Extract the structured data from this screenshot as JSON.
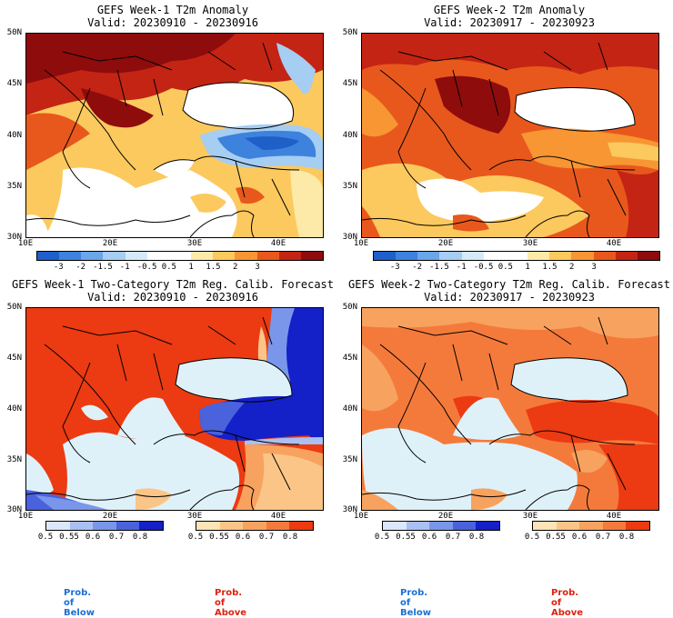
{
  "panels": [
    {
      "title": "GEFS Week-1 T2m Anomaly",
      "valid": "Valid: 20230910 - 20230916",
      "kind": "anomaly",
      "scene": "w1a"
    },
    {
      "title": "GEFS Week-2 T2m Anomaly",
      "valid": "Valid: 20230917 - 20230923",
      "kind": "anomaly",
      "scene": "w2a"
    },
    {
      "title": "GEFS Week-1 Two-Category T2m Reg. Calib. Forecast",
      "valid": "Valid: 20230910 - 20230916",
      "kind": "prob",
      "scene": "w1p"
    },
    {
      "title": "GEFS Week-2 Two-Category T2m Reg. Calib. Forecast",
      "valid": "Valid: 20230917 - 20230923",
      "kind": "prob",
      "scene": "w2p"
    }
  ],
  "axes": {
    "lat_labels": [
      "50N",
      "45N",
      "40N",
      "35N",
      "30N"
    ],
    "lon_labels": [
      "10E",
      "20E",
      "30E",
      "40E"
    ]
  },
  "anomaly_scale": {
    "labels": [
      "-3",
      "-2",
      "-1.5",
      "-1",
      "-0.5",
      "0.5",
      "1",
      "1.5",
      "2",
      "3"
    ],
    "colors": [
      "#1e5fc8",
      "#3d82dc",
      "#6aa6e8",
      "#a6cdf2",
      "#d6e9f8",
      "#ffffff",
      "#ffffff",
      "#fde9a8",
      "#fbc95e",
      "#f79632",
      "#e8581c",
      "#c42414",
      "#8e0c0c"
    ]
  },
  "below_scale": {
    "labels": [
      "0.5",
      "0.55",
      "0.6",
      "0.7",
      "0.8"
    ],
    "colors": [
      "#dbe7fa",
      "#a9c0f2",
      "#7a96ea",
      "#4a62dc",
      "#1420c8"
    ]
  },
  "above_scale": {
    "labels": [
      "0.5",
      "0.55",
      "0.6",
      "0.7",
      "0.8"
    ],
    "colors": [
      "#fde3b6",
      "#fbc588",
      "#f8a25f",
      "#f47a3b",
      "#ec3a12"
    ]
  },
  "legend": {
    "below": "Prob. of Below",
    "above": "Prob. of Above",
    "below_color": "#1a6fd6",
    "above_color": "#e0200c"
  }
}
